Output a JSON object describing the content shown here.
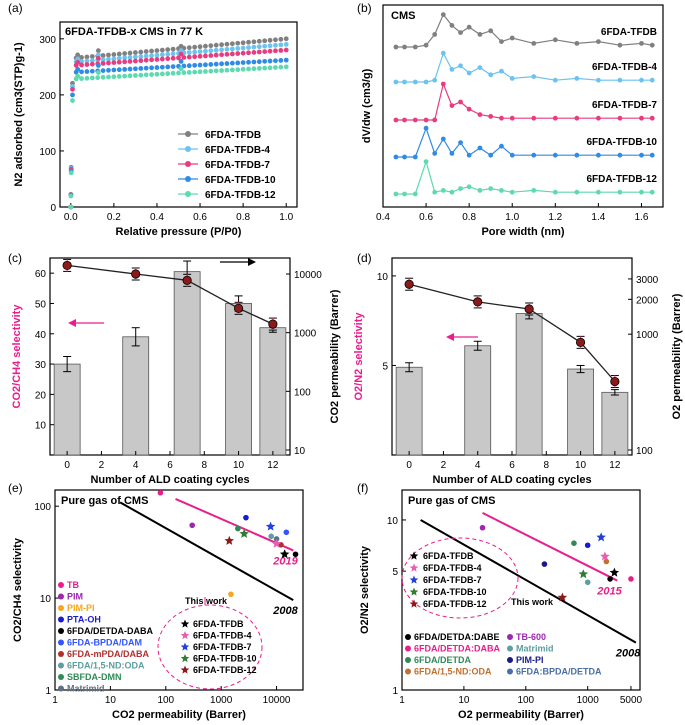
{
  "colors": {
    "gray": "#808080",
    "lightblue": "#6CC3F0",
    "pink": "#E83C7E",
    "blue": "#2F8BE6",
    "teal": "#5ED9B0",
    "darkred": "#8B1A1A",
    "selectivity": "#E91E8C",
    "trendline": "#E91E8C"
  },
  "chart_data": [
    {
      "panel_label": "(a)",
      "type": "scatter",
      "title": "6FDA-TFDB-x CMS in 77 K",
      "xlabel": "Relative pressure (P/P0)",
      "ylabel": "N2 adsorbed (cm3(STP)g-1)",
      "xlim": [
        -0.05,
        1.05
      ],
      "ylim": [
        0,
        330
      ],
      "xticks": [
        0.0,
        0.2,
        0.4,
        0.6,
        0.8,
        1.0
      ],
      "yticks": [
        0,
        100,
        200,
        300
      ],
      "series": [
        {
          "name": "6FDA-TFDB",
          "color": "#808080",
          "plateau": [
            265,
            300
          ]
        },
        {
          "name": "6FDA-TFDB-4",
          "color": "#6CC3F0",
          "plateau": [
            258,
            290
          ]
        },
        {
          "name": "6FDA-TFDB-7",
          "color": "#E83C7E",
          "plateau": [
            252,
            280
          ]
        },
        {
          "name": "6FDA-TFDB-10",
          "color": "#2F8BE6",
          "plateau": [
            240,
            262
          ]
        },
        {
          "name": "6FDA-TFDB-12",
          "color": "#5ED9B0",
          "plateau": [
            228,
            250
          ]
        }
      ]
    },
    {
      "panel_label": "(b)",
      "type": "line",
      "title": "CMS",
      "xlabel": "Pore width (nm)",
      "ylabel": "dV/dw (cm3/g)",
      "xlim": [
        0.4,
        1.7
      ],
      "xticks": [
        0.4,
        0.6,
        0.8,
        1.0,
        1.2,
        1.4,
        1.6
      ],
      "series": [
        {
          "name": "6FDA-TFDB",
          "color": "#808080",
          "x": [
            0.46,
            0.5,
            0.55,
            0.6,
            0.64,
            0.68,
            0.72,
            0.76,
            0.8,
            0.85,
            0.9,
            0.95,
            1.0,
            1.1,
            1.2,
            1.3,
            1.4,
            1.5,
            1.6,
            1.65
          ],
          "y": [
            0,
            0,
            0,
            0.05,
            0.35,
            0.9,
            0.6,
            0.4,
            0.55,
            0.35,
            0.45,
            0.15,
            0.25,
            0.1,
            0.2,
            0.1,
            0.15,
            0.05,
            0.1,
            0.05
          ]
        },
        {
          "name": "6FDA-TFDB-4",
          "color": "#6CC3F0",
          "x": [
            0.46,
            0.5,
            0.55,
            0.6,
            0.64,
            0.68,
            0.72,
            0.76,
            0.8,
            0.85,
            0.9,
            0.95,
            1.0,
            1.1,
            1.2,
            1.3,
            1.4,
            1.5,
            1.6,
            1.65
          ],
          "y": [
            0,
            0,
            0,
            0,
            0.05,
            0.8,
            0.35,
            0.45,
            0.25,
            0.4,
            0.2,
            0.3,
            0.1,
            0.15,
            0.05,
            0.1,
            0.05,
            0.05,
            0.05,
            0.05
          ]
        },
        {
          "name": "6FDA-TFDB-7",
          "color": "#E83C7E",
          "x": [
            0.46,
            0.5,
            0.55,
            0.6,
            0.64,
            0.68,
            0.72,
            0.76,
            0.8,
            0.85,
            0.9,
            0.95,
            1.0,
            1.1,
            1.2,
            1.3,
            1.4,
            1.5,
            1.6,
            1.65
          ],
          "y": [
            0,
            0,
            0,
            0,
            0,
            1.0,
            0.4,
            0.5,
            0.3,
            0.15,
            0.1,
            0.05,
            0.05,
            0.05,
            0.05,
            0.05,
            0.05,
            0.05,
            0.05,
            0.05
          ]
        },
        {
          "name": "6FDA-TFDB-10",
          "color": "#2F8BE6",
          "x": [
            0.46,
            0.5,
            0.55,
            0.6,
            0.64,
            0.68,
            0.72,
            0.76,
            0.8,
            0.85,
            0.9,
            0.95,
            1.0,
            1.1,
            1.2,
            1.3,
            1.4,
            1.5,
            1.6,
            1.65
          ],
          "y": [
            0,
            0,
            0,
            0.8,
            0.1,
            0.5,
            0.1,
            0.4,
            0.05,
            0.25,
            0.05,
            0.3,
            0.05,
            0.05,
            0.05,
            0.05,
            0.05,
            0.05,
            0.05,
            0.05
          ]
        },
        {
          "name": "6FDA-TFDB-12",
          "color": "#5ED9B0",
          "x": [
            0.46,
            0.5,
            0.55,
            0.6,
            0.64,
            0.68,
            0.72,
            0.76,
            0.8,
            0.85,
            0.9,
            0.95,
            1.0,
            1.1,
            1.2,
            1.3,
            1.4,
            1.5,
            1.6,
            1.65
          ],
          "y": [
            0,
            0,
            0,
            0.9,
            0.05,
            0.1,
            0.05,
            0.15,
            0.2,
            0.1,
            0.15,
            0.1,
            0.05,
            0.1,
            0.05,
            0.05,
            0.05,
            0.05,
            0.05,
            0.05
          ]
        }
      ]
    },
    {
      "panel_label": "(c)",
      "type": "bar",
      "xlabel": "Number of ALD coating cycles",
      "ylabel_left": "CO2/CH4 selectivity",
      "ylabel_right": "CO2 permeability (Barrer)",
      "xlim": [
        -1,
        13
      ],
      "ylim_left": [
        0,
        65
      ],
      "xticks": [
        0,
        2,
        4,
        6,
        8,
        10,
        12
      ],
      "yticks_left": [
        10,
        20,
        30,
        40,
        50,
        60
      ],
      "yticks_right": [
        "10",
        "100",
        "1000",
        "10000"
      ],
      "bars": {
        "x": [
          0,
          4,
          7,
          10,
          12
        ],
        "values": [
          30,
          39,
          60.5,
          50,
          42
        ],
        "errors": [
          2.5,
          3,
          3.5,
          2.5,
          1.5
        ]
      },
      "permeability": {
        "x": [
          0,
          4,
          7,
          10,
          12
        ],
        "values": [
          14000,
          10000,
          7800,
          2600,
          1400
        ]
      }
    },
    {
      "panel_label": "(d)",
      "type": "bar",
      "xlabel": "Number of ALD coating cycles",
      "ylabel_left": "O2/N2 selectivity",
      "ylabel_right": "O2 permeability (Barrer)",
      "xlim": [
        -1,
        13
      ],
      "ylim_left": [
        0,
        11
      ],
      "xticks": [
        0,
        2,
        4,
        6,
        8,
        10,
        12
      ],
      "yticks_left": [
        5,
        10
      ],
      "yticks_right": [
        "100",
        "1000",
        "2000",
        "3000"
      ],
      "bars": {
        "x": [
          0,
          4,
          7,
          10,
          12
        ],
        "values": [
          4.9,
          6.1,
          7.9,
          4.8,
          3.5
        ],
        "errors": [
          0.25,
          0.25,
          0.3,
          0.2,
          0.15
        ]
      },
      "permeability": {
        "x": [
          0,
          4,
          7,
          10,
          12
        ],
        "values": [
          2700,
          1900,
          1650,
          850,
          390
        ]
      }
    },
    {
      "panel_label": "(e)",
      "type": "scatter",
      "title": "Pure gas of CMS",
      "xlabel": "CO2 permeability (Barrer)",
      "ylabel": "CO2/CH4 selectivity",
      "xscale": "log",
      "yscale": "log",
      "xlim": [
        1,
        30000
      ],
      "ylim": [
        1,
        150
      ],
      "xticks": [
        "1",
        "10",
        "100",
        "1000",
        "10000"
      ],
      "yticks": [
        "1",
        "10",
        "100"
      ],
      "upper_bounds": [
        {
          "label": "2008",
          "color": "#000000",
          "x": [
            15,
            20000
          ],
          "y": [
            110,
            9.5
          ]
        },
        {
          "label": "2019",
          "color": "#E91E8C",
          "x": [
            150,
            20000
          ],
          "y": [
            120,
            33
          ]
        }
      ],
      "annotation": "This work",
      "legend_literature": [
        {
          "name": "TB",
          "color": "#E91E8C"
        },
        {
          "name": "PIM",
          "color": "#9C27B0"
        },
        {
          "name": "PIM-PI",
          "color": "#F5A623"
        },
        {
          "name": "PTA-OH",
          "color": "#1A1AD4"
        },
        {
          "name": "6FDA/DETDA-DABA",
          "color": "#000000"
        },
        {
          "name": "6FDA-BPDA/DAM",
          "color": "#3355FF"
        },
        {
          "name": "6FDA-mPDA/DABA",
          "color": "#B03030"
        },
        {
          "name": "6FDA/1,5-ND:ODA",
          "color": "#5E9EA0"
        },
        {
          "name": "SBFDA-DMN",
          "color": "#2E8B57"
        },
        {
          "name": "Matrimid",
          "color": "#607080"
        }
      ],
      "legend_thiswork": [
        {
          "name": "6FDA-TFDB",
          "color": "#000000"
        },
        {
          "name": "6FDA-TFDB-4",
          "color": "#E85EB0"
        },
        {
          "name": "6FDA-TFDB-7",
          "color": "#2040E0"
        },
        {
          "name": "6FDA-TFDB-10",
          "color": "#2E7D32"
        },
        {
          "name": "6FDA-TFDB-12",
          "color": "#8B1A1A"
        }
      ],
      "literature_points": [
        {
          "x": 80,
          "y": 140,
          "color": "#E91E8C"
        },
        {
          "x": 300,
          "y": 62,
          "color": "#9C27B0"
        },
        {
          "x": 1500,
          "y": 11,
          "color": "#F5A623"
        },
        {
          "x": 2800,
          "y": 75,
          "color": "#1A1AD4"
        },
        {
          "x": 22000,
          "y": 30,
          "color": "#000000"
        },
        {
          "x": 15000,
          "y": 52,
          "color": "#3355FF"
        },
        {
          "x": 12000,
          "y": 38,
          "color": "#B03030"
        },
        {
          "x": 8000,
          "y": 47,
          "color": "#5E9EA0"
        },
        {
          "x": 2000,
          "y": 57,
          "color": "#2E8B57"
        },
        {
          "x": 10000,
          "y": 44,
          "color": "#607080"
        }
      ],
      "thiswork_points": [
        {
          "x": 14000,
          "y": 30,
          "color": "#000000"
        },
        {
          "x": 10000,
          "y": 39,
          "color": "#E85EB0"
        },
        {
          "x": 7800,
          "y": 60,
          "color": "#2040E0"
        },
        {
          "x": 2600,
          "y": 50,
          "color": "#2E7D32"
        },
        {
          "x": 1400,
          "y": 42,
          "color": "#8B1A1A"
        }
      ]
    },
    {
      "panel_label": "(f)",
      "type": "scatter",
      "title": "Pure gas of CMS",
      "xlabel": "O2 permeability (Barrer)",
      "ylabel": "O2/N2 selectivity",
      "xscale": "log",
      "yscale": "log",
      "xlim": [
        1,
        7000
      ],
      "ylim": [
        1,
        15
      ],
      "xticks": [
        "1",
        "10",
        "100",
        "1000",
        "5000"
      ],
      "yticks": [
        "1",
        "5",
        "10"
      ],
      "upper_bounds": [
        {
          "label": "2008",
          "color": "#000000",
          "x": [
            2,
            6000
          ],
          "y": [
            10,
            1.9
          ]
        },
        {
          "label": "2015",
          "color": "#E91E8C",
          "x": [
            20,
            3000
          ],
          "y": [
            11,
            4.4
          ]
        }
      ],
      "annotation": "This work",
      "legend_thiswork": [
        {
          "name": "6FDA-TFDB",
          "color": "#000000"
        },
        {
          "name": "6FDA-TFDB-4",
          "color": "#E85EB0"
        },
        {
          "name": "6FDA-TFDB-7",
          "color": "#2040E0"
        },
        {
          "name": "6FDA-TFDB-10",
          "color": "#2E7D32"
        },
        {
          "name": "6FDA-TFDB-12",
          "color": "#8B1A1A"
        }
      ],
      "legend_literature": [
        {
          "name": "6FDA/DETDA:DABE",
          "color": "#000000"
        },
        {
          "name": "TB-600",
          "color": "#9C27B0"
        },
        {
          "name": "6FDA/DETDA:DABA",
          "color": "#E91E8C"
        },
        {
          "name": "Matrimid",
          "color": "#5E9EA0"
        },
        {
          "name": "6FDA/DETDA",
          "color": "#2E8B57"
        },
        {
          "name": "PIM-PI",
          "color": "#1A1A8C"
        },
        {
          "name": "6FDA/1,5-ND:ODA",
          "color": "#C07030"
        },
        {
          "name": "6FDA:BPDA/DETDA",
          "color": "#4A6FA5"
        }
      ],
      "literature_points": [
        {
          "x": 20,
          "y": 9,
          "color": "#9C27B0"
        },
        {
          "x": 200,
          "y": 5.5,
          "color": "#1A1A8C"
        },
        {
          "x": 600,
          "y": 7.3,
          "color": "#2E8B57"
        },
        {
          "x": 1000,
          "y": 7.1,
          "color": "#1A1AD4"
        },
        {
          "x": 2000,
          "y": 5.7,
          "color": "#C07030"
        },
        {
          "x": 2300,
          "y": 4.5,
          "color": "#000000"
        },
        {
          "x": 5000,
          "y": 4.5,
          "color": "#E91E8C"
        },
        {
          "x": 1000,
          "y": 4.3,
          "color": "#5E9EA0"
        }
      ],
      "thiswork_points": [
        {
          "x": 2700,
          "y": 4.9,
          "color": "#000000"
        },
        {
          "x": 1900,
          "y": 6.1,
          "color": "#E85EB0"
        },
        {
          "x": 1650,
          "y": 7.9,
          "color": "#2040E0"
        },
        {
          "x": 850,
          "y": 4.8,
          "color": "#2E7D32"
        },
        {
          "x": 390,
          "y": 3.5,
          "color": "#8B1A1A"
        }
      ]
    }
  ]
}
